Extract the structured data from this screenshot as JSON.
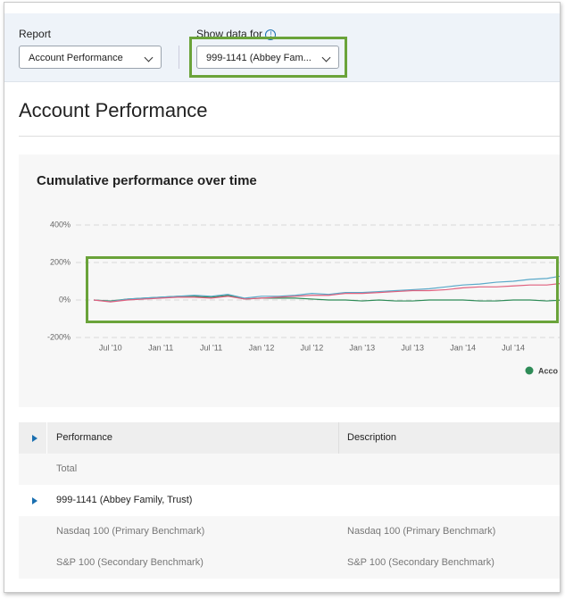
{
  "header": {
    "report_label": "Report",
    "report_value": "Account Performance",
    "show_label": "Show data for",
    "show_value": "999-1141 (Abbey Fam..."
  },
  "page_title": "Account Performance",
  "chart_data": {
    "type": "line",
    "title": "Cumulative performance over time",
    "categories": [
      null,
      "Jul '10",
      null,
      null,
      "Jan '11",
      null,
      null,
      "Jul '11",
      null,
      null,
      "Jan '12",
      null,
      null,
      "Jul '12",
      null,
      null,
      "Jan '13",
      null,
      null,
      "Jul '13",
      null,
      null,
      "Jan '14",
      null,
      null,
      "Jul '14",
      null,
      null,
      null
    ],
    "series": [
      {
        "name": "Acco",
        "color": "#2e8b57",
        "values": [
          0,
          -5,
          5,
          10,
          15,
          20,
          20,
          15,
          25,
          5,
          10,
          10,
          10,
          5,
          0,
          0,
          -5,
          0,
          -5,
          -5,
          0,
          0,
          0,
          -5,
          -5,
          0,
          0,
          -5,
          0
        ]
      },
      {
        "color": "#5aa9c9",
        "values": [
          0,
          -8,
          5,
          10,
          15,
          20,
          25,
          20,
          30,
          10,
          20,
          20,
          25,
          35,
          30,
          40,
          40,
          45,
          50,
          55,
          60,
          70,
          80,
          85,
          95,
          100,
          110,
          115,
          130
        ]
      },
      {
        "color": "#e0607e",
        "values": [
          0,
          -10,
          0,
          5,
          10,
          15,
          15,
          10,
          20,
          5,
          10,
          15,
          20,
          25,
          25,
          35,
          35,
          40,
          45,
          50,
          50,
          55,
          65,
          70,
          70,
          75,
          80,
          80,
          90
        ]
      }
    ],
    "ylim": [
      -200,
      400
    ],
    "yticks": [
      {
        "value": -200,
        "label": "-200%"
      },
      {
        "value": 0,
        "label": "0%"
      },
      {
        "value": 200,
        "label": "200%"
      },
      {
        "value": 400,
        "label": "400%"
      }
    ],
    "grid": true
  },
  "table": {
    "columns": [
      "Performance",
      "Description"
    ],
    "rows": [
      [
        "Total"
      ],
      [
        "999-1141 (Abbey Family, Trust)"
      ],
      [
        "Nasdaq 100 (Primary Benchmark)",
        "Nasdaq 100 (Primary Benchmark)"
      ],
      [
        "S&P 100 (Secondary Benchmark)",
        "S&P 100 (Secondary Benchmark)"
      ]
    ]
  }
}
